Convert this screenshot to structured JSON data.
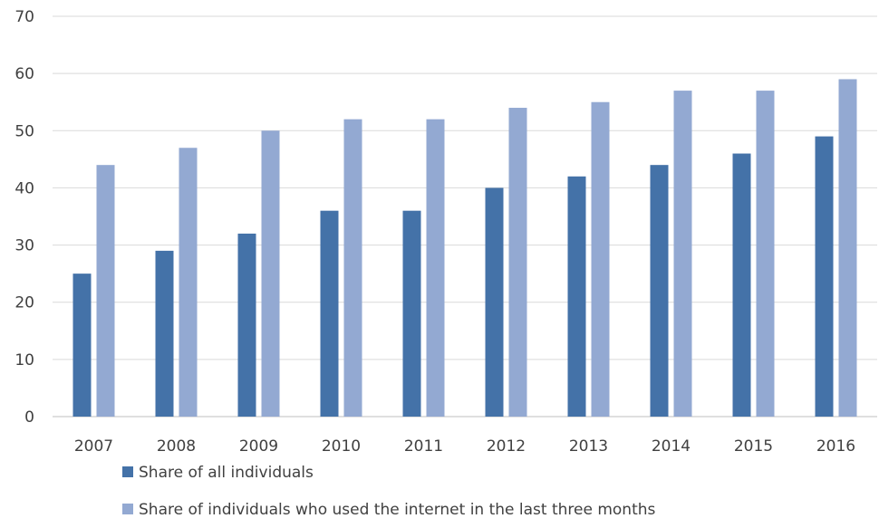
{
  "chart_data": {
    "type": "bar",
    "title": "",
    "xlabel": "",
    "ylabel": "",
    "ylim": [
      0,
      70
    ],
    "yticks": [
      0,
      10,
      20,
      30,
      40,
      50,
      60,
      70
    ],
    "grid": true,
    "legend_position": "bottom-left",
    "categories": [
      "2007",
      "2008",
      "2009",
      "2010",
      "2011",
      "2012",
      "2013",
      "2014",
      "2015",
      "2016"
    ],
    "series": [
      {
        "name": "Share of all individuals",
        "color": "#4472a8",
        "values": [
          25,
          29,
          32,
          36,
          36,
          40,
          42,
          44,
          46,
          49
        ]
      },
      {
        "name": "Share of individuals who used the internet in the last three months",
        "color": "#93a9d2",
        "values": [
          44,
          47,
          50,
          52,
          52,
          54,
          55,
          57,
          57,
          59
        ]
      }
    ]
  }
}
